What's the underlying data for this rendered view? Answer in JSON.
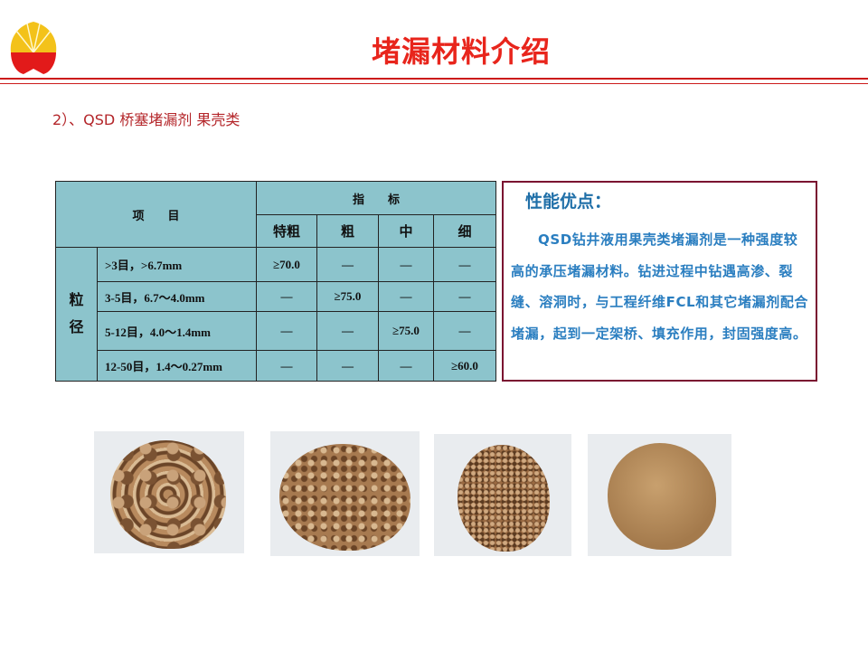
{
  "title": "堵漏材料介绍",
  "subtitle": "2）、QSD 桥塞堵漏剂 果壳类",
  "table": {
    "header_item": "项　　目",
    "header_index": "指　　标",
    "grades": [
      "特粗",
      "粗",
      "中",
      "细"
    ],
    "side_label": "粒径",
    "rows": [
      {
        "label": ">3目，>6.7mm",
        "values": [
          "≥70.0",
          "—",
          "—",
          "—"
        ]
      },
      {
        "label": "3-5目，6.7～4.0mm",
        "values": [
          "—",
          "≥75.0",
          "—",
          "—"
        ]
      },
      {
        "label": "5-12目，4.0～1.4mm",
        "values": [
          "—",
          "—",
          "≥75.0",
          "—"
        ]
      },
      {
        "label": "12-50目，1.4～0.27mm",
        "values": [
          "—",
          "—",
          "—",
          "≥60.0"
        ]
      }
    ]
  },
  "advantages": {
    "heading": "性能优点：",
    "text": "QSD钻井液用果壳类堵漏剂是一种强度较高的承压堵漏材料。钻进过程中钻遇高渗、裂缝、溶洞时，与工程纤维FCL和其它堵漏剂配合堵漏，起到一定架桥、填充作用，封固强度高。"
  },
  "colors": {
    "title": "#e8251c",
    "table_bg": "#8cc4cc",
    "box_border": "#7a1030",
    "box_text": "#2a7ec0"
  }
}
